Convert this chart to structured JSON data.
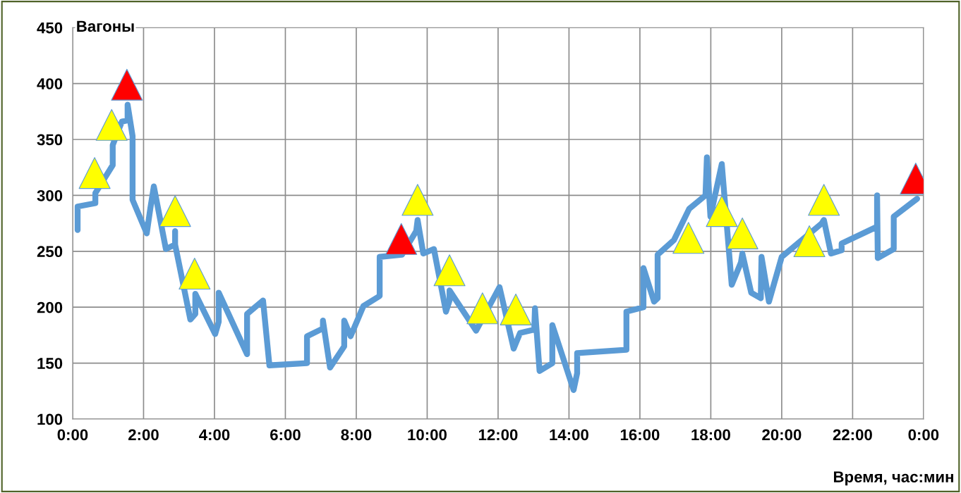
{
  "chart_data": {
    "type": "line",
    "ylabel": "Вагоны",
    "xlabel": "Время, час:мин",
    "xlim": [
      0,
      24
    ],
    "ylim": [
      100,
      450
    ],
    "xticks": [
      {
        "value": 0,
        "label": "0:00"
      },
      {
        "value": 2,
        "label": "2:00"
      },
      {
        "value": 4,
        "label": "4:00"
      },
      {
        "value": 6,
        "label": "6:00"
      },
      {
        "value": 8,
        "label": "8:00"
      },
      {
        "value": 10,
        "label": "10:00"
      },
      {
        "value": 12,
        "label": "12:00"
      },
      {
        "value": 14,
        "label": "14:00"
      },
      {
        "value": 16,
        "label": "16:00"
      },
      {
        "value": 18,
        "label": "18:00"
      },
      {
        "value": 20,
        "label": "20:00"
      },
      {
        "value": 22,
        "label": "22:00"
      },
      {
        "value": 24,
        "label": "0:00"
      }
    ],
    "yticks": [
      100,
      150,
      200,
      250,
      300,
      350,
      400,
      450
    ],
    "grid": true,
    "legend": false,
    "series": [
      {
        "color": "#5b9bd5",
        "marker": "none",
        "line_style": "solid",
        "x": [
          0.14,
          0.14,
          0.64,
          0.64,
          1.13,
          1.13,
          1.39,
          1.55,
          1.55,
          1.69,
          1.69,
          2.09,
          2.19,
          2.29,
          2.63,
          2.89,
          2.89,
          2.89,
          3.32,
          3.46,
          3.46,
          4.02,
          4.12,
          4.12,
          4.92,
          4.92,
          5.37,
          5.55,
          6.61,
          6.61,
          7.06,
          7.06,
          7.26,
          7.66,
          7.66,
          7.84,
          8.2,
          8.66,
          8.66,
          9.29,
          9.69,
          9.73,
          9.89,
          10.19,
          10.53,
          10.63,
          10.63,
          11.38,
          12.04,
          12.44,
          12.62,
          13.02,
          13.04,
          13.17,
          13.53,
          13.53,
          14.13,
          14.23,
          14.23,
          15.62,
          15.62,
          16.1,
          16.1,
          16.4,
          16.5,
          16.5,
          16.96,
          17.39,
          17.85,
          17.89,
          17.99,
          18.31,
          18.59,
          18.85,
          18.89,
          19.14,
          19.41,
          19.43,
          19.64,
          20.0,
          21.13,
          21.19,
          21.39,
          21.69,
          21.69,
          22.69,
          22.69,
          22.71,
          23.16,
          23.16,
          23.82
        ],
        "values": [
          269,
          290,
          293,
          302,
          327,
          345,
          366,
          367,
          381,
          353,
          296,
          266,
          288,
          308,
          252,
          256,
          268,
          256,
          189,
          194,
          212,
          176,
          187,
          213,
          158,
          194,
          206,
          148,
          150,
          174,
          181,
          188,
          146,
          165,
          188,
          174,
          201,
          210,
          245,
          247,
          268,
          278,
          248,
          252,
          196,
          206,
          215,
          179,
          218,
          163,
          177,
          180,
          199,
          143,
          150,
          184,
          126,
          141,
          159,
          162,
          196,
          200,
          235,
          205,
          208,
          247,
          260,
          288,
          300,
          334,
          281,
          328,
          220,
          240,
          248,
          213,
          208,
          245,
          205,
          245,
          275,
          278,
          248,
          251,
          257,
          272,
          300,
          244,
          252,
          281,
          297
        ]
      },
      {
        "type": "scatter",
        "color": "#ffff00",
        "marker": "triangle",
        "x": [
          0.62,
          1.1,
          2.89,
          3.44,
          9.73,
          10.63,
          11.56,
          12.5,
          17.37,
          18.31,
          18.89,
          20.78,
          21.19
        ],
        "values": [
          320,
          363,
          286,
          230,
          296,
          233,
          199,
          198,
          262,
          286,
          266,
          259,
          296
        ]
      },
      {
        "type": "scatter",
        "color": "#ff0000",
        "marker": "triangle",
        "x": [
          1.53,
          9.27,
          23.78
        ],
        "values": [
          399,
          261,
          315
        ]
      }
    ]
  }
}
